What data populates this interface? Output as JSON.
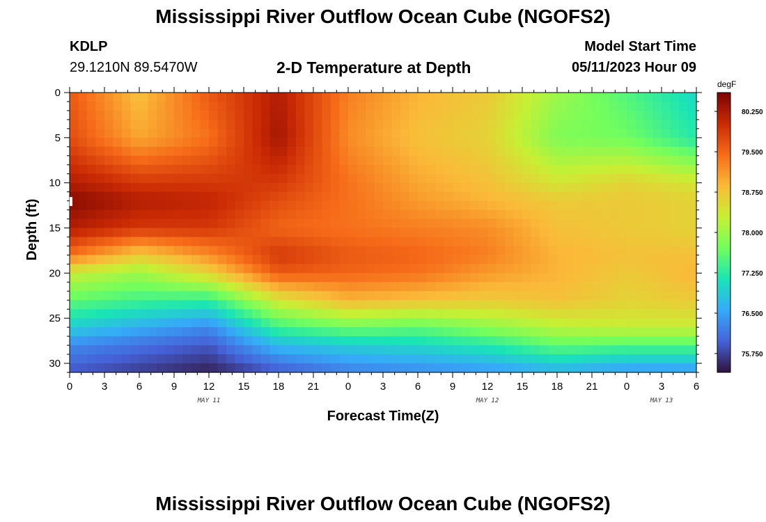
{
  "header": {
    "title": "Mississippi River Outflow Ocean Cube (NGOFS2)",
    "station_id": "KDLP",
    "station_coords": "29.1210N  89.5470W",
    "plot_title": "2-D Temperature at Depth",
    "model_start_label": "Model Start Time",
    "model_start_value": "05/11/2023 Hour 09"
  },
  "footer": {
    "title": "Mississippi River Outflow Ocean Cube (NGOFS2)"
  },
  "colors": {
    "colormap": [
      "#30123b",
      "#4662d8",
      "#36aaf9",
      "#1ae4b6",
      "#72fe5e",
      "#c8ef34",
      "#faba39",
      "#f66b19",
      "#ca2a04",
      "#7a0403"
    ]
  },
  "chart_data": {
    "type": "heatmap",
    "xlabel": "Forecast Time(Z)",
    "ylabel": "Depth (ft)",
    "x_range_hours": [
      0,
      54
    ],
    "ylim": [
      0,
      31
    ],
    "x_ticks": [
      {
        "hour": 0,
        "label": "0"
      },
      {
        "hour": 3,
        "label": "3"
      },
      {
        "hour": 6,
        "label": "6"
      },
      {
        "hour": 9,
        "label": "9"
      },
      {
        "hour": 12,
        "label": "12"
      },
      {
        "hour": 15,
        "label": "15"
      },
      {
        "hour": 18,
        "label": "18"
      },
      {
        "hour": 21,
        "label": "21"
      },
      {
        "hour": 24,
        "label": "0"
      },
      {
        "hour": 27,
        "label": "3"
      },
      {
        "hour": 30,
        "label": "6"
      },
      {
        "hour": 33,
        "label": "9"
      },
      {
        "hour": 36,
        "label": "12"
      },
      {
        "hour": 39,
        "label": "15"
      },
      {
        "hour": 42,
        "label": "18"
      },
      {
        "hour": 45,
        "label": "21"
      },
      {
        "hour": 48,
        "label": "0"
      },
      {
        "hour": 51,
        "label": "3"
      },
      {
        "hour": 54,
        "label": "6"
      }
    ],
    "date_labels": [
      {
        "hour": 12,
        "label": "MAY 11"
      },
      {
        "hour": 36,
        "label": "MAY 12"
      },
      {
        "hour": 51,
        "label": "MAY 13"
      }
    ],
    "y_ticks": [
      0,
      5,
      10,
      15,
      20,
      25,
      30
    ],
    "colorbar": {
      "unit": "degF",
      "min": 75.4,
      "max": 80.6,
      "ticks": [
        {
          "value": 80.25,
          "label": "80.250"
        },
        {
          "value": 79.5,
          "label": "79.500"
        },
        {
          "value": 78.75,
          "label": "78.750"
        },
        {
          "value": 78.0,
          "label": "78.000"
        },
        {
          "value": 77.25,
          "label": "77.250"
        },
        {
          "value": 76.5,
          "label": "76.500"
        },
        {
          "value": 75.75,
          "label": "75.750"
        }
      ]
    },
    "grid_hours": [
      0,
      6,
      12,
      18,
      24,
      30,
      36,
      42,
      48,
      54
    ],
    "grid_depths": [
      0,
      5,
      10,
      12,
      15,
      18,
      20,
      23,
      26,
      28,
      31
    ],
    "temperature_grid": [
      [
        79.6,
        78.8,
        79.6,
        80.2,
        79.3,
        78.9,
        78.7,
        78.0,
        77.5,
        77.0
      ],
      [
        79.7,
        79.0,
        79.4,
        80.3,
        79.2,
        78.8,
        78.6,
        77.8,
        77.7,
        77.2
      ],
      [
        80.2,
        79.9,
        79.9,
        79.9,
        79.4,
        79.0,
        78.8,
        78.4,
        78.6,
        78.4
      ],
      [
        80.5,
        80.2,
        80.1,
        79.7,
        79.4,
        79.1,
        78.9,
        78.7,
        78.7,
        78.6
      ],
      [
        80.2,
        79.9,
        79.9,
        79.5,
        79.4,
        79.3,
        79.2,
        78.8,
        78.7,
        78.6
      ],
      [
        79.4,
        78.7,
        79.2,
        79.9,
        79.6,
        79.5,
        79.3,
        78.9,
        78.8,
        78.8
      ],
      [
        78.3,
        78.0,
        78.6,
        79.6,
        79.5,
        79.4,
        79.1,
        78.9,
        78.7,
        78.9
      ],
      [
        77.6,
        77.4,
        77.3,
        78.4,
        78.9,
        78.8,
        78.7,
        78.8,
        78.6,
        78.7
      ],
      [
        76.9,
        76.6,
        76.3,
        77.4,
        77.7,
        77.6,
        77.9,
        78.2,
        78.3,
        78.3
      ],
      [
        76.3,
        76.1,
        75.9,
        76.7,
        76.9,
        77.0,
        77.2,
        77.6,
        77.5,
        77.5
      ],
      [
        75.9,
        75.7,
        75.5,
        75.9,
        76.2,
        76.3,
        76.4,
        76.6,
        76.4,
        76.4
      ]
    ]
  }
}
